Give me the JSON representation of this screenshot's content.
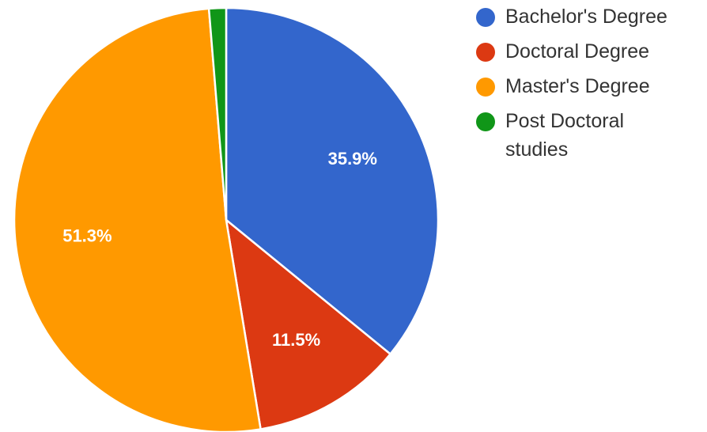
{
  "chart_data": {
    "type": "pie",
    "categories": [
      "Bachelor's Degree",
      "Doctoral Degree",
      "Master's Degree",
      "Post Doctoral studies"
    ],
    "values": [
      35.9,
      11.5,
      51.3,
      1.3
    ],
    "labels": [
      "35.9%",
      "11.5%",
      "51.3%",
      ""
    ],
    "colors": [
      "#3366cc",
      "#dc3912",
      "#ff9900",
      "#109618"
    ],
    "legend": {
      "position": "right",
      "entries": [
        {
          "lines": [
            "Bachelor's Degree"
          ]
        },
        {
          "lines": [
            "Doctoral Degree"
          ]
        },
        {
          "lines": [
            "Master's Degree"
          ]
        },
        {
          "lines": [
            "Post Doctoral",
            "studies"
          ]
        }
      ]
    }
  }
}
